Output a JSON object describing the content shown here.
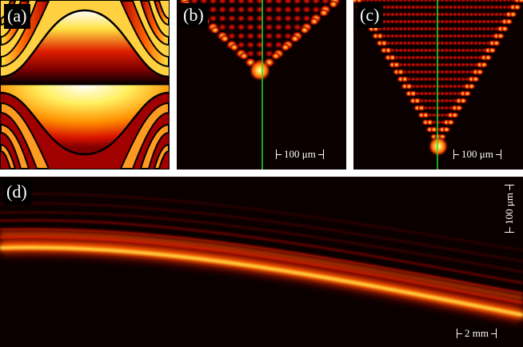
{
  "panels": {
    "a": {
      "label": "(a)"
    },
    "b": {
      "label": "(b)",
      "scale_bar": "100 μm"
    },
    "c": {
      "label": "(c)",
      "scale_bar": "100 μm"
    },
    "d": {
      "label": "(d)",
      "scale_bar_vertical": "100 μm",
      "scale_bar_horizontal": "2 mm"
    }
  },
  "colors": {
    "background": "#0a0000",
    "colormap": [
      "#000000",
      "#7a0000",
      "#e01e00",
      "#ff8c00",
      "#ffe040",
      "#ffffff"
    ],
    "marker_line": "#22dd22",
    "scale_bar": "#ffffff"
  }
}
